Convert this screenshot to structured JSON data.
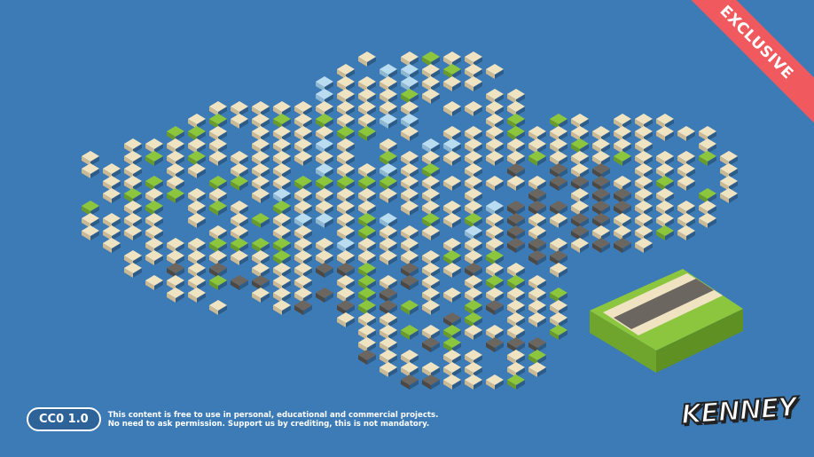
{
  "banner": {
    "label": "EXCLUSIVE",
    "color": "#f0595e"
  },
  "license": {
    "badge": "CC0 1.0",
    "line1": "This content is free to use in personal, educational and commercial projects.",
    "line2": "No need to ask permission. Support us by crediting, this is not mandatory."
  },
  "logo": {
    "text": "KENNEY"
  },
  "colors": {
    "background": "#3d7bb6",
    "grass": "#8cc63f",
    "sand": "#efe3c2",
    "road": "#6b6660",
    "water": "#b9dcf0"
  }
}
